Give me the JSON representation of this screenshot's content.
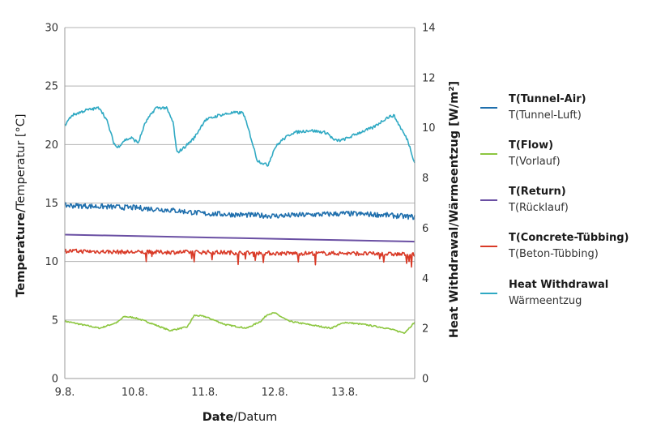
{
  "chart_data": {
    "type": "line",
    "xlabel": {
      "bold": "Date",
      "normal": "/Datum"
    },
    "ylabel_left": {
      "bold": "Temperature/",
      "normal": "Temperatur [°C]"
    },
    "ylabel_right": "Heat Withdrawal/Wärmeentzug [W/m²]",
    "x_ticks": [
      "9.8.",
      "10.8.",
      "11.8.",
      "12.8.",
      "13.8."
    ],
    "x_range_days": [
      0,
      5
    ],
    "ylim_left": [
      0,
      30
    ],
    "ylim_right": [
      0,
      14
    ],
    "y_ticks_left": [
      "0",
      "5",
      "10",
      "15",
      "20",
      "25",
      "30"
    ],
    "y_ticks_right": [
      "0",
      "2",
      "4",
      "6",
      "8",
      "10",
      "12",
      "14"
    ],
    "grid": "horizontal",
    "legend_position": "right",
    "series": [
      {
        "name_en": "T(Tunnel-Air)",
        "name_de": "T(Tunnel-Luft)",
        "color": "#1f6fad",
        "axis": "left",
        "x": [
          0,
          0.5,
          1.0,
          1.5,
          2.0,
          2.5,
          3.0,
          3.5,
          4.0,
          4.5,
          5.0
        ],
        "y": [
          14.8,
          14.7,
          14.6,
          14.4,
          14.1,
          14.0,
          13.9,
          14.0,
          14.1,
          14.0,
          13.8
        ]
      },
      {
        "name_en": "T(Flow)",
        "name_de": "T(Vorlauf)",
        "color": "#8cc63f",
        "axis": "left",
        "x": [
          0,
          0.25,
          0.5,
          0.75,
          0.85,
          1.0,
          1.2,
          1.5,
          1.75,
          1.85,
          2.0,
          2.3,
          2.6,
          2.8,
          2.9,
          3.0,
          3.2,
          3.5,
          3.8,
          4.0,
          4.3,
          4.6,
          4.85,
          5.0
        ],
        "y": [
          4.9,
          4.6,
          4.3,
          4.8,
          5.3,
          5.2,
          4.8,
          4.1,
          4.4,
          5.4,
          5.3,
          4.6,
          4.3,
          4.9,
          5.5,
          5.6,
          4.9,
          4.6,
          4.3,
          4.8,
          4.6,
          4.3,
          3.9,
          4.8
        ]
      },
      {
        "name_en": "T(Return)",
        "name_de": "T(Rücklauf)",
        "color": "#6a4fa3",
        "axis": "left",
        "x": [
          0,
          5
        ],
        "y": [
          12.3,
          11.7
        ]
      },
      {
        "name_en": "T(Concrete-Tübbing)",
        "name_de": "T(Beton-Tübbing)",
        "color": "#d93a27",
        "axis": "left",
        "x": [
          0,
          1,
          2,
          3,
          4,
          5
        ],
        "y": [
          10.9,
          10.8,
          10.8,
          10.7,
          10.7,
          10.6
        ]
      },
      {
        "name_en": "Heat Withdrawal",
        "name_de": "Wärmeentzug",
        "color": "#2fa9c3",
        "axis": "right",
        "x": [
          0,
          0.1,
          0.3,
          0.5,
          0.6,
          0.7,
          0.75,
          0.85,
          0.95,
          1.05,
          1.15,
          1.3,
          1.45,
          1.55,
          1.6,
          1.7,
          1.85,
          2.0,
          2.2,
          2.4,
          2.55,
          2.65,
          2.75,
          2.9,
          3.0,
          3.1,
          3.25,
          3.5,
          3.75,
          3.85,
          3.95,
          4.05,
          4.2,
          4.4,
          4.6,
          4.7,
          4.8,
          4.9,
          5.0
        ],
        "y": [
          10.1,
          10.5,
          10.7,
          10.8,
          10.3,
          9.4,
          9.2,
          9.5,
          9.6,
          9.4,
          10.2,
          10.8,
          10.8,
          10.2,
          9.0,
          9.2,
          9.6,
          10.3,
          10.5,
          10.6,
          10.6,
          9.7,
          8.7,
          8.5,
          9.2,
          9.5,
          9.8,
          9.9,
          9.8,
          9.5,
          9.5,
          9.6,
          9.8,
          10.0,
          10.4,
          10.5,
          10.0,
          9.5,
          8.6
        ]
      }
    ]
  }
}
